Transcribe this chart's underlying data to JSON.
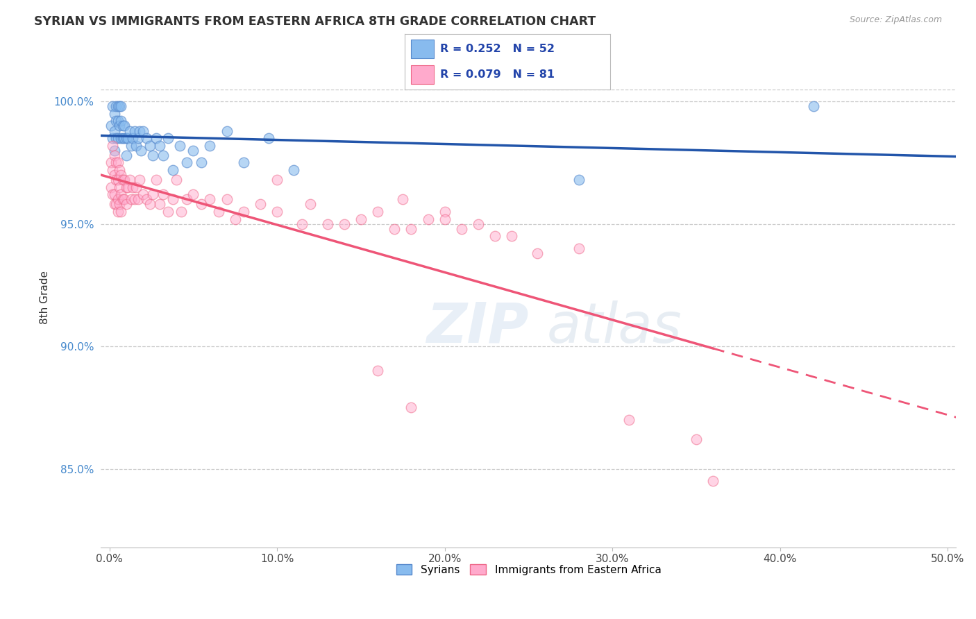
{
  "title": "SYRIAN VS IMMIGRANTS FROM EASTERN AFRICA 8TH GRADE CORRELATION CHART",
  "source_text": "Source: ZipAtlas.com",
  "ylabel": "8th Grade",
  "xlim": [
    -0.005,
    0.505
  ],
  "ylim": [
    0.818,
    1.022
  ],
  "xticks": [
    0.0,
    0.1,
    0.2,
    0.3,
    0.4,
    0.5
  ],
  "xticklabels": [
    "0.0%",
    "10.0%",
    "20.0%",
    "30.0%",
    "40.0%",
    "50.0%"
  ],
  "yticks": [
    0.85,
    0.9,
    0.95,
    1.0
  ],
  "yticklabels": [
    "85.0%",
    "90.0%",
    "95.0%",
    "100.0%"
  ],
  "blue_color": "#88BBEE",
  "pink_color": "#FFAACC",
  "blue_edge_color": "#5588CC",
  "pink_edge_color": "#EE6688",
  "blue_line_color": "#2255AA",
  "pink_line_color": "#EE5577",
  "legend_R_blue": "R = 0.252",
  "legend_N_blue": "N = 52",
  "legend_R_pink": "R = 0.079",
  "legend_N_pink": "N = 81",
  "legend_label_blue": "Syrians",
  "legend_label_pink": "Immigrants from Eastern Africa",
  "blue_x": [
    0.001,
    0.002,
    0.002,
    0.003,
    0.003,
    0.003,
    0.004,
    0.004,
    0.004,
    0.005,
    0.005,
    0.005,
    0.006,
    0.006,
    0.007,
    0.007,
    0.007,
    0.008,
    0.008,
    0.009,
    0.009,
    0.01,
    0.01,
    0.011,
    0.012,
    0.013,
    0.014,
    0.015,
    0.016,
    0.017,
    0.018,
    0.019,
    0.02,
    0.022,
    0.024,
    0.026,
    0.028,
    0.03,
    0.032,
    0.035,
    0.038,
    0.042,
    0.046,
    0.05,
    0.055,
    0.06,
    0.07,
    0.08,
    0.095,
    0.11,
    0.28,
    0.42
  ],
  "blue_y": [
    0.99,
    0.998,
    0.985,
    0.995,
    0.988,
    0.98,
    0.998,
    0.992,
    0.985,
    0.998,
    0.992,
    0.985,
    0.998,
    0.99,
    0.998,
    0.992,
    0.985,
    0.99,
    0.985,
    0.99,
    0.985,
    0.985,
    0.978,
    0.985,
    0.988,
    0.982,
    0.985,
    0.988,
    0.982,
    0.985,
    0.988,
    0.98,
    0.988,
    0.985,
    0.982,
    0.978,
    0.985,
    0.982,
    0.978,
    0.985,
    0.972,
    0.982,
    0.975,
    0.98,
    0.975,
    0.982,
    0.988,
    0.975,
    0.985,
    0.972,
    0.968,
    0.998
  ],
  "pink_x": [
    0.001,
    0.001,
    0.002,
    0.002,
    0.002,
    0.003,
    0.003,
    0.003,
    0.003,
    0.004,
    0.004,
    0.004,
    0.005,
    0.005,
    0.005,
    0.005,
    0.006,
    0.006,
    0.006,
    0.007,
    0.007,
    0.007,
    0.008,
    0.008,
    0.009,
    0.009,
    0.01,
    0.01,
    0.011,
    0.012,
    0.013,
    0.014,
    0.015,
    0.016,
    0.017,
    0.018,
    0.02,
    0.022,
    0.024,
    0.026,
    0.028,
    0.03,
    0.032,
    0.035,
    0.038,
    0.04,
    0.043,
    0.046,
    0.05,
    0.055,
    0.06,
    0.065,
    0.07,
    0.075,
    0.08,
    0.09,
    0.1,
    0.115,
    0.13,
    0.15,
    0.17,
    0.19,
    0.21,
    0.23,
    0.255,
    0.28,
    0.175,
    0.2,
    0.22,
    0.24,
    0.1,
    0.12,
    0.14,
    0.16,
    0.18,
    0.2,
    0.16,
    0.18,
    0.31,
    0.35,
    0.36
  ],
  "pink_y": [
    0.975,
    0.965,
    0.982,
    0.972,
    0.962,
    0.978,
    0.97,
    0.962,
    0.958,
    0.975,
    0.968,
    0.958,
    0.975,
    0.968,
    0.96,
    0.955,
    0.972,
    0.965,
    0.958,
    0.97,
    0.962,
    0.955,
    0.968,
    0.96,
    0.968,
    0.96,
    0.965,
    0.958,
    0.965,
    0.968,
    0.96,
    0.965,
    0.96,
    0.965,
    0.96,
    0.968,
    0.962,
    0.96,
    0.958,
    0.962,
    0.968,
    0.958,
    0.962,
    0.955,
    0.96,
    0.968,
    0.955,
    0.96,
    0.962,
    0.958,
    0.96,
    0.955,
    0.96,
    0.952,
    0.955,
    0.958,
    0.955,
    0.95,
    0.95,
    0.952,
    0.948,
    0.952,
    0.948,
    0.945,
    0.938,
    0.94,
    0.96,
    0.955,
    0.95,
    0.945,
    0.968,
    0.958,
    0.95,
    0.955,
    0.948,
    0.952,
    0.89,
    0.875,
    0.87,
    0.862,
    0.845
  ]
}
